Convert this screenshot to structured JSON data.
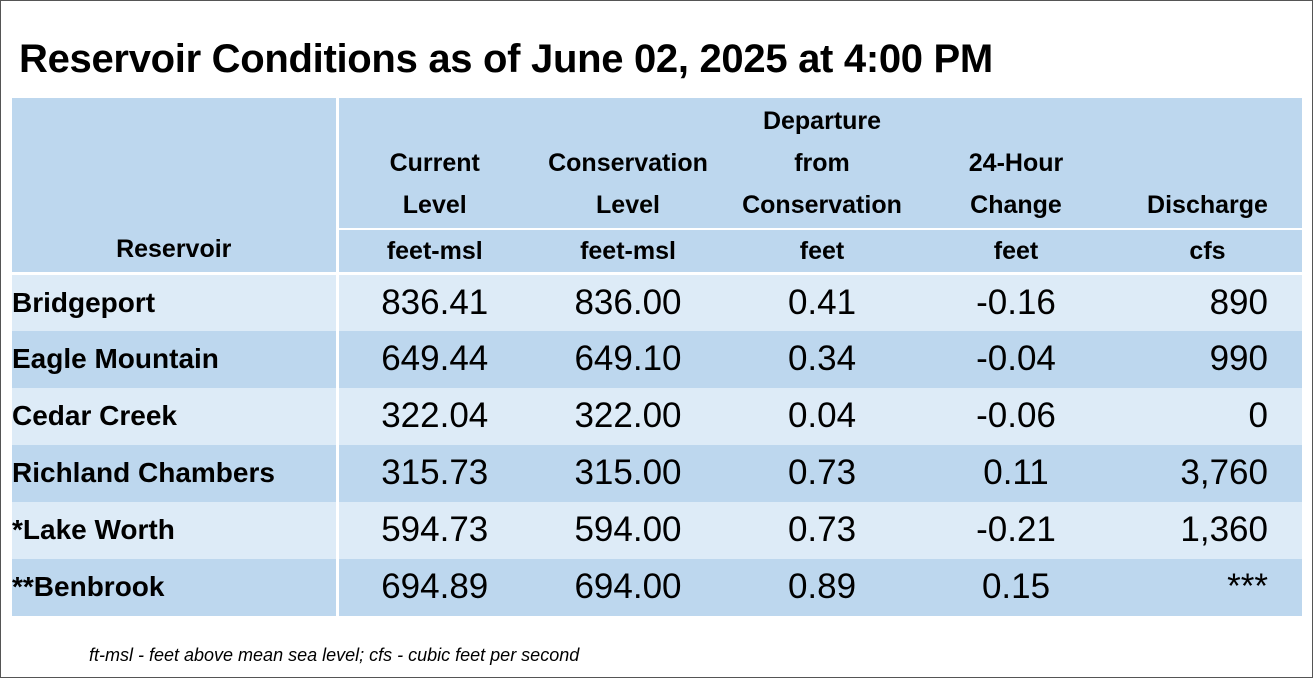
{
  "title": "Reservoir Conditions as of June 02, 2025 at 4:00 PM",
  "colors": {
    "header_bg": "#bdd7ee",
    "row_light": "#ddebf7",
    "row_dark": "#bdd7ee",
    "divider": "#ffffff"
  },
  "columns": {
    "reservoir": {
      "label": "Reservoir"
    },
    "current_level": {
      "label_lines": [
        "Current",
        "Level"
      ],
      "unit": "feet-msl"
    },
    "conservation_level": {
      "label_lines": [
        "Conservation",
        "Level"
      ],
      "unit": "feet-msl"
    },
    "departure": {
      "label_lines": [
        "Departure",
        "from",
        "Conservation"
      ],
      "unit": "feet"
    },
    "change_24h": {
      "label_lines": [
        "24-Hour",
        "Change"
      ],
      "unit": "feet"
    },
    "discharge": {
      "label_lines": [
        "Discharge"
      ],
      "unit": "cfs"
    }
  },
  "rows": [
    {
      "reservoir": "Bridgeport",
      "current": "836.41",
      "conservation": "836.00",
      "departure": "0.41",
      "change": "-0.16",
      "discharge": "890"
    },
    {
      "reservoir": "Eagle Mountain",
      "current": "649.44",
      "conservation": "649.10",
      "departure": "0.34",
      "change": "-0.04",
      "discharge": "990"
    },
    {
      "reservoir": "Cedar Creek",
      "current": "322.04",
      "conservation": "322.00",
      "departure": "0.04",
      "change": "-0.06",
      "discharge": "0"
    },
    {
      "reservoir": "Richland Chambers",
      "current": "315.73",
      "conservation": "315.00",
      "departure": "0.73",
      "change": "0.11",
      "discharge": "3,760"
    },
    {
      "reservoir": "*Lake Worth",
      "current": "594.73",
      "conservation": "594.00",
      "departure": "0.73",
      "change": "-0.21",
      "discharge": "1,360"
    },
    {
      "reservoir": "**Benbrook",
      "current": "694.89",
      "conservation": "694.00",
      "departure": "0.89",
      "change": "0.15",
      "discharge": "***"
    }
  ],
  "footnote": "ft-msl - feet above mean sea level; cfs - cubic feet per second"
}
